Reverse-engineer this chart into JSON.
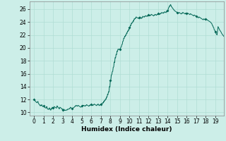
{
  "title": "",
  "xlabel": "Humidex (Indice chaleur)",
  "ylabel": "",
  "bg_color": "#cceee8",
  "grid_color": "#b0ddd4",
  "line_color": "#006655",
  "marker_color": "#006655",
  "xlim": [
    -0.5,
    19.9
  ],
  "ylim": [
    9.5,
    27.2
  ],
  "yticks": [
    10,
    12,
    14,
    16,
    18,
    20,
    22,
    24,
    26
  ],
  "xticks": [
    0,
    1,
    2,
    3,
    4,
    5,
    6,
    7,
    8,
    9,
    10,
    11,
    12,
    13,
    14,
    15,
    16,
    17,
    18,
    19
  ],
  "x": [
    0.0,
    0.05,
    0.1,
    0.15,
    0.2,
    0.25,
    0.3,
    0.35,
    0.4,
    0.45,
    0.5,
    0.55,
    0.6,
    0.65,
    0.7,
    0.75,
    0.8,
    0.85,
    0.9,
    0.95,
    1.0,
    1.05,
    1.1,
    1.15,
    1.2,
    1.25,
    1.3,
    1.35,
    1.4,
    1.45,
    1.5,
    1.55,
    1.6,
    1.65,
    1.7,
    1.75,
    1.8,
    1.85,
    1.9,
    1.95,
    2.0,
    2.05,
    2.1,
    2.15,
    2.2,
    2.25,
    2.3,
    2.35,
    2.4,
    2.45,
    2.5,
    2.55,
    2.6,
    2.65,
    2.7,
    2.75,
    2.8,
    2.85,
    2.9,
    2.95,
    3.0,
    3.05,
    3.1,
    3.15,
    3.2,
    3.25,
    3.3,
    3.35,
    3.4,
    3.45,
    3.5,
    3.55,
    3.6,
    3.65,
    3.7,
    3.75,
    3.8,
    3.85,
    3.9,
    3.95,
    4.0,
    4.05,
    4.1,
    4.15,
    4.2,
    4.25,
    4.3,
    4.35,
    4.4,
    4.45,
    4.5,
    4.55,
    4.6,
    4.65,
    4.7,
    4.75,
    4.8,
    4.85,
    4.9,
    4.95,
    5.0,
    5.05,
    5.1,
    5.15,
    5.2,
    5.25,
    5.3,
    5.35,
    5.4,
    5.45,
    5.5,
    5.55,
    5.6,
    5.65,
    5.7,
    5.75,
    5.8,
    5.85,
    5.9,
    5.95,
    6.0,
    6.05,
    6.1,
    6.15,
    6.2,
    6.25,
    6.3,
    6.35,
    6.4,
    6.45,
    6.5,
    6.55,
    6.6,
    6.65,
    6.7,
    6.75,
    6.8,
    6.85,
    6.9,
    6.95,
    7.0,
    7.05,
    7.1,
    7.15,
    7.2,
    7.25,
    7.3,
    7.35,
    7.4,
    7.45,
    7.5,
    7.55,
    7.6,
    7.65,
    7.7,
    7.75,
    7.8,
    7.85,
    7.9,
    7.95,
    8.0,
    8.05,
    8.1,
    8.15,
    8.2,
    8.25,
    8.3,
    8.35,
    8.4,
    8.45,
    8.5,
    8.55,
    8.6,
    8.65,
    8.7,
    8.75,
    8.8,
    8.85,
    8.9,
    8.95,
    9.0,
    9.05,
    9.1,
    9.15,
    9.2,
    9.25,
    9.3,
    9.35,
    9.4,
    9.45,
    9.5,
    9.55,
    9.6,
    9.65,
    9.7,
    9.75,
    9.8,
    9.85,
    9.9,
    9.95,
    10.0,
    10.05,
    10.1,
    10.15,
    10.2,
    10.25,
    10.3,
    10.35,
    10.4,
    10.45,
    10.5,
    10.55,
    10.6,
    10.65,
    10.7,
    10.75,
    10.8,
    10.85,
    10.9,
    10.95,
    11.0,
    11.05,
    11.1,
    11.15,
    11.2,
    11.25,
    11.3,
    11.35,
    11.4,
    11.45,
    11.5,
    11.55,
    11.6,
    11.65,
    11.7,
    11.75,
    11.8,
    11.85,
    11.9,
    11.95,
    12.0,
    12.05,
    12.1,
    12.15,
    12.2,
    12.25,
    12.3,
    12.35,
    12.4,
    12.45,
    12.5,
    12.55,
    12.6,
    12.65,
    12.7,
    12.75,
    12.8,
    12.85,
    12.9,
    12.95,
    13.0,
    13.05,
    13.1,
    13.15,
    13.2,
    13.25,
    13.3,
    13.35,
    13.4,
    13.45,
    13.5,
    13.55,
    13.6,
    13.65,
    13.7,
    13.75,
    13.8,
    13.85,
    13.9,
    13.95,
    14.0,
    14.05,
    14.1,
    14.15,
    14.2,
    14.25,
    14.3,
    14.35,
    14.4,
    14.45,
    14.5,
    14.55,
    14.6,
    14.65,
    14.7,
    14.75,
    14.8,
    14.85,
    14.9,
    14.95,
    15.0,
    15.05,
    15.1,
    15.15,
    15.2,
    15.25,
    15.3,
    15.35,
    15.4,
    15.45,
    15.5,
    15.55,
    15.6,
    15.65,
    15.7,
    15.75,
    15.8,
    15.85,
    15.9,
    15.95,
    16.0,
    16.05,
    16.1,
    16.15,
    16.2,
    16.25,
    16.3,
    16.35,
    16.4,
    16.45,
    16.5,
    16.55,
    16.6,
    16.65,
    16.7,
    16.75,
    16.8,
    16.85,
    16.9,
    16.95,
    17.0,
    17.05,
    17.1,
    17.15,
    17.2,
    17.25,
    17.3,
    17.35,
    17.4,
    17.45,
    17.5,
    17.55,
    17.6,
    17.65,
    17.7,
    17.75,
    17.8,
    17.85,
    17.9,
    17.95,
    18.0,
    18.05,
    18.1,
    18.15,
    18.2,
    18.25,
    18.3,
    18.35,
    18.4,
    18.45,
    18.5,
    18.55,
    18.6,
    18.65,
    18.7,
    18.75,
    18.8,
    18.85,
    18.9,
    18.95,
    19.0,
    19.1,
    19.2,
    19.3,
    19.4,
    19.5,
    19.6,
    19.7,
    19.8,
    19.9
  ],
  "y": [
    12.0,
    11.9,
    11.8,
    11.75,
    11.6,
    11.55,
    11.5,
    11.65,
    11.7,
    11.4,
    11.3,
    11.2,
    11.1,
    11.0,
    11.15,
    11.05,
    11.2,
    11.0,
    10.9,
    10.95,
    11.0,
    10.85,
    10.8,
    10.75,
    10.7,
    10.65,
    10.9,
    10.85,
    10.5,
    10.55,
    10.5,
    10.45,
    10.7,
    10.65,
    10.4,
    10.35,
    10.6,
    10.55,
    10.8,
    10.75,
    10.7,
    10.65,
    10.9,
    10.85,
    10.8,
    10.75,
    10.7,
    10.65,
    11.0,
    10.95,
    10.8,
    10.75,
    10.6,
    10.55,
    10.8,
    10.75,
    10.7,
    10.65,
    10.5,
    10.55,
    10.4,
    10.35,
    10.5,
    10.45,
    10.3,
    10.35,
    10.3,
    10.35,
    10.4,
    10.35,
    10.5,
    10.45,
    10.5,
    10.55,
    10.6,
    10.55,
    10.8,
    10.75,
    10.7,
    10.65,
    10.6,
    10.65,
    10.7,
    10.75,
    10.8,
    10.85,
    11.0,
    10.95,
    11.1,
    11.05,
    11.0,
    10.95,
    11.1,
    11.05,
    11.0,
    10.95,
    10.9,
    10.85,
    10.8,
    10.85,
    11.0,
    10.95,
    11.1,
    11.05,
    11.1,
    11.05,
    11.0,
    10.95,
    11.1,
    11.05,
    11.2,
    11.15,
    11.1,
    11.05,
    11.0,
    10.95,
    11.1,
    11.05,
    11.2,
    11.15,
    11.2,
    11.15,
    11.1,
    11.05,
    11.2,
    11.15,
    11.3,
    11.25,
    11.2,
    11.15,
    11.1,
    11.05,
    11.2,
    11.15,
    11.3,
    11.25,
    11.1,
    11.05,
    11.2,
    11.15,
    11.3,
    11.25,
    11.4,
    11.35,
    11.5,
    11.45,
    11.7,
    11.65,
    11.9,
    11.85,
    12.1,
    12.05,
    12.4,
    12.35,
    12.8,
    12.75,
    13.2,
    13.15,
    14.0,
    13.95,
    15.0,
    15.05,
    15.8,
    15.85,
    16.3,
    16.35,
    17.0,
    17.05,
    17.8,
    17.75,
    18.5,
    18.45,
    19.0,
    18.95,
    19.5,
    19.45,
    19.8,
    19.75,
    19.8,
    19.75,
    19.8,
    19.85,
    20.1,
    20.15,
    20.5,
    20.55,
    21.0,
    21.05,
    21.5,
    21.45,
    21.8,
    21.75,
    22.0,
    21.95,
    22.3,
    22.25,
    22.6,
    22.55,
    22.8,
    22.75,
    23.2,
    23.15,
    23.5,
    23.45,
    23.8,
    23.75,
    24.0,
    23.95,
    24.2,
    24.15,
    24.5,
    24.45,
    24.6,
    24.55,
    24.8,
    24.75,
    24.7,
    24.65,
    24.6,
    24.55,
    24.7,
    24.65,
    24.8,
    24.75,
    24.6,
    24.55,
    24.7,
    24.65,
    24.9,
    24.85,
    24.8,
    24.75,
    24.9,
    24.85,
    25.0,
    24.95,
    24.9,
    24.85,
    25.0,
    24.95,
    25.1,
    25.05,
    25.0,
    24.95,
    25.1,
    25.05,
    25.2,
    25.15,
    25.1,
    25.05,
    25.0,
    24.95,
    25.1,
    25.05,
    25.2,
    25.15,
    25.1,
    25.05,
    25.2,
    25.15,
    25.3,
    25.25,
    25.2,
    25.15,
    25.3,
    25.25,
    25.4,
    25.35,
    25.5,
    25.45,
    25.4,
    25.35,
    25.5,
    25.45,
    25.6,
    25.55,
    25.5,
    25.45,
    25.7,
    25.65,
    25.8,
    25.85,
    26.2,
    26.25,
    26.5,
    26.45,
    26.7,
    26.65,
    26.4,
    26.35,
    26.2,
    26.15,
    26.0,
    25.95,
    25.8,
    25.75,
    25.7,
    25.65,
    25.6,
    25.55,
    25.5,
    25.45,
    25.4,
    25.35,
    25.5,
    25.45,
    25.4,
    25.35,
    25.3,
    25.25,
    25.4,
    25.35,
    25.5,
    25.45,
    25.4,
    25.35,
    25.3,
    25.25,
    25.4,
    25.35,
    25.3,
    25.25,
    25.4,
    25.35,
    25.3,
    25.25,
    25.2,
    25.15,
    25.3,
    25.25,
    25.2,
    25.15,
    25.1,
    25.05,
    25.0,
    24.95,
    25.1,
    25.05,
    25.0,
    24.95,
    24.9,
    24.85,
    24.8,
    24.75,
    24.7,
    24.65,
    24.8,
    24.75,
    24.7,
    24.65,
    24.6,
    24.55,
    24.5,
    24.45,
    24.4,
    24.35,
    24.5,
    24.45,
    24.4,
    24.35,
    24.5,
    24.45,
    24.4,
    24.35,
    24.3,
    24.25,
    24.2,
    24.15,
    24.1,
    24.05,
    24.0,
    23.95,
    23.8,
    23.75,
    23.5,
    23.45,
    23.2,
    23.15,
    22.8,
    22.75,
    22.5,
    22.2,
    22.0,
    23.3,
    23.0,
    22.7,
    22.5,
    22.2,
    22.0,
    21.8
  ],
  "marker_x": [
    0,
    1,
    2,
    3,
    4,
    5,
    6,
    7,
    8,
    9,
    10,
    11,
    12,
    13,
    14,
    15,
    16,
    17,
    18,
    19
  ],
  "marker_y": [
    12.0,
    11.0,
    10.7,
    10.4,
    10.6,
    11.0,
    11.2,
    11.3,
    15.0,
    19.8,
    23.2,
    24.7,
    25.1,
    25.3,
    25.8,
    25.5,
    25.3,
    24.9,
    24.5,
    22.5
  ]
}
